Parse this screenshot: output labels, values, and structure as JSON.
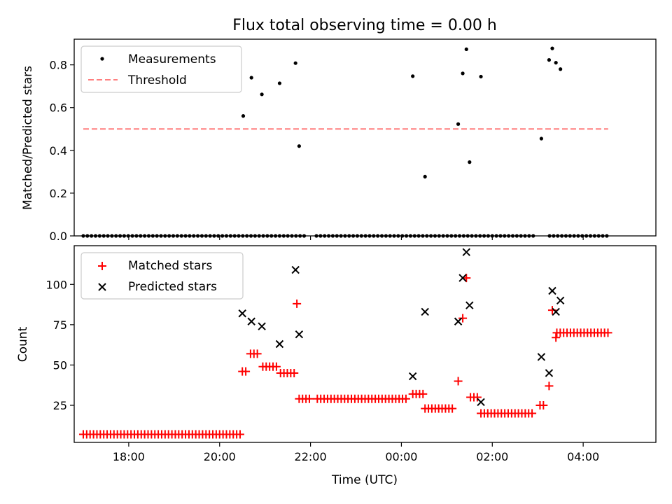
{
  "chart_data": {
    "title": "Flux total observing time = 0.00 h",
    "xlabel": "Time (UTC)",
    "x_unit": "hours since 00:00 UTC (negative = previous day)",
    "xlim": [
      -7.2,
      5.6
    ],
    "x_ticks": [
      {
        "value": -6,
        "label": "18:00"
      },
      {
        "value": -4,
        "label": "20:00"
      },
      {
        "value": -2,
        "label": "22:00"
      },
      {
        "value": 0,
        "label": "00:00"
      },
      {
        "value": 2,
        "label": "02:00"
      },
      {
        "value": 4,
        "label": "04:00"
      }
    ],
    "panels": [
      {
        "id": "ratio",
        "type": "scatter",
        "ylabel": "Matched/Predicted stars",
        "ylim": [
          0,
          0.92
        ],
        "y_ticks": [
          {
            "value": 0.0,
            "label": "0.0"
          },
          {
            "value": 0.2,
            "label": "0.2"
          },
          {
            "value": 0.4,
            "label": "0.4"
          },
          {
            "value": 0.6,
            "label": "0.6"
          },
          {
            "value": 0.8,
            "label": "0.8"
          }
        ],
        "legend": {
          "placement": "top-left",
          "entries": [
            {
              "label": "Measurements",
              "series": "measurements"
            },
            {
              "label": "Threshold",
              "series": "threshold"
            }
          ]
        },
        "series": [
          {
            "name": "measurements",
            "label": "Measurements",
            "marker": "dot",
            "color": "#000000",
            "zero_points": {
              "x_start": -7.0,
              "x_end": 4.55,
              "step": 0.09,
              "gaps": [
                [
                  -2.08,
                  -1.95
                ],
                [
                  2.95,
                  3.25
                ]
              ]
            },
            "points": [
              {
                "x": -3.48,
                "y": 0.561
              },
              {
                "x": -3.3,
                "y": 0.74
              },
              {
                "x": -3.07,
                "y": 0.662
              },
              {
                "x": -2.68,
                "y": 0.714
              },
              {
                "x": -2.33,
                "y": 0.808
              },
              {
                "x": -2.25,
                "y": 0.42
              },
              {
                "x": 0.25,
                "y": 0.747
              },
              {
                "x": 0.52,
                "y": 0.277
              },
              {
                "x": 1.25,
                "y": 0.523
              },
              {
                "x": 1.35,
                "y": 0.76
              },
              {
                "x": 1.43,
                "y": 0.873
              },
              {
                "x": 1.5,
                "y": 0.345
              },
              {
                "x": 1.75,
                "y": 0.745
              },
              {
                "x": 3.08,
                "y": 0.455
              },
              {
                "x": 3.25,
                "y": 0.823
              },
              {
                "x": 3.32,
                "y": 0.877
              },
              {
                "x": 3.4,
                "y": 0.81
              },
              {
                "x": 3.5,
                "y": 0.78
              }
            ]
          },
          {
            "name": "threshold",
            "label": "Threshold",
            "type": "line",
            "style": "dashed",
            "color": "#ff7f7f",
            "x": [
              -7.0,
              4.55
            ],
            "y": [
              0.5,
              0.5
            ]
          }
        ]
      },
      {
        "id": "counts",
        "type": "scatter",
        "ylabel": "Count",
        "ylim": [
          2,
          124
        ],
        "y_ticks": [
          {
            "value": 25,
            "label": "25"
          },
          {
            "value": 50,
            "label": "50"
          },
          {
            "value": 75,
            "label": "75"
          },
          {
            "value": 100,
            "label": "100"
          }
        ],
        "legend": {
          "placement": "top-left",
          "entries": [
            {
              "label": "Matched stars",
              "series": "matched"
            },
            {
              "label": "Predicted stars",
              "series": "predicted"
            }
          ]
        },
        "series": [
          {
            "name": "matched",
            "label": "Matched stars",
            "marker": "plus",
            "color": "#ff0000",
            "step_segments": [
              {
                "x_start": -7.0,
                "x_end": -3.55,
                "y": 7
              },
              {
                "x_start": -3.5,
                "x_end": -3.38,
                "y": 46
              },
              {
                "x_start": -3.32,
                "x_end": -3.1,
                "y": 57
              },
              {
                "x_start": -3.05,
                "x_end": -2.7,
                "y": 49
              },
              {
                "x_start": -2.66,
                "x_end": -2.35,
                "y": 45
              },
              {
                "x_start": -2.25,
                "x_end": -2.0,
                "y": 29
              },
              {
                "x_start": -1.85,
                "x_end": 0.15,
                "y": 29
              },
              {
                "x_start": 0.25,
                "x_end": 0.5,
                "y": 32
              },
              {
                "x_start": 0.52,
                "x_end": 1.18,
                "y": 23
              },
              {
                "x_start": 1.52,
                "x_end": 1.7,
                "y": 30
              },
              {
                "x_start": 1.75,
                "x_end": 2.9,
                "y": 20
              },
              {
                "x_start": 3.05,
                "x_end": 3.15,
                "y": 25
              },
              {
                "x_start": 3.42,
                "x_end": 4.55,
                "y": 70
              }
            ],
            "points": [
              {
                "x": -2.3,
                "y": 88
              },
              {
                "x": 1.25,
                "y": 40
              },
              {
                "x": 1.35,
                "y": 79
              },
              {
                "x": 1.43,
                "y": 104
              },
              {
                "x": 3.25,
                "y": 37
              },
              {
                "x": 3.32,
                "y": 84
              },
              {
                "x": 3.4,
                "y": 67
              }
            ]
          },
          {
            "name": "predicted",
            "label": "Predicted stars",
            "marker": "x",
            "color": "#000000",
            "points": [
              {
                "x": -3.5,
                "y": 82
              },
              {
                "x": -3.3,
                "y": 77
              },
              {
                "x": -3.07,
                "y": 74
              },
              {
                "x": -2.68,
                "y": 63
              },
              {
                "x": -2.33,
                "y": 109
              },
              {
                "x": -2.25,
                "y": 69
              },
              {
                "x": 0.25,
                "y": 43
              },
              {
                "x": 0.52,
                "y": 83
              },
              {
                "x": 1.25,
                "y": 77
              },
              {
                "x": 1.35,
                "y": 104
              },
              {
                "x": 1.43,
                "y": 120
              },
              {
                "x": 1.5,
                "y": 87
              },
              {
                "x": 1.75,
                "y": 27
              },
              {
                "x": 3.08,
                "y": 55
              },
              {
                "x": 3.25,
                "y": 45
              },
              {
                "x": 3.32,
                "y": 96
              },
              {
                "x": 3.4,
                "y": 83
              },
              {
                "x": 3.5,
                "y": 90
              }
            ]
          }
        ]
      }
    ]
  }
}
